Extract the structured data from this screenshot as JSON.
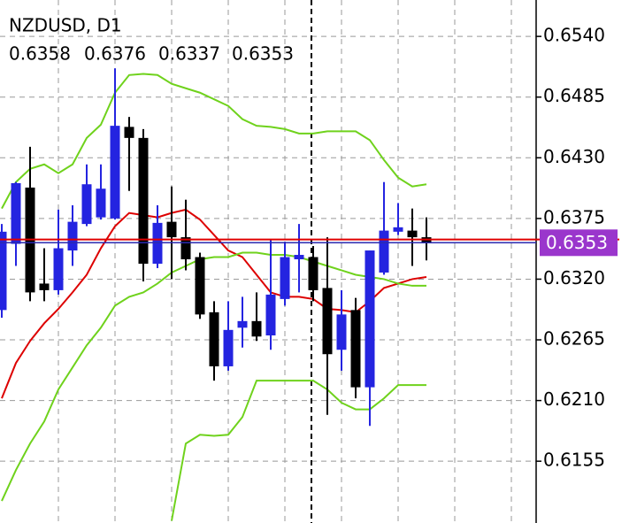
{
  "chart_data": {
    "type": "candlestick",
    "title": "NZDUSD, D1",
    "ohlc_header": [
      0.6358,
      0.6376,
      0.6337,
      0.6353
    ],
    "open": [
      0.6292,
      0.6352,
      0.6403,
      0.6316,
      0.631,
      0.6346,
      0.637,
      0.6376,
      0.6375,
      0.6458,
      0.6448,
      0.6334,
      0.6372,
      0.6358,
      0.634,
      0.629,
      0.6241,
      0.6276,
      0.6282,
      0.6269,
      0.6302,
      0.6338,
      0.634,
      0.6312,
      0.6256,
      0.6292,
      0.6222,
      0.6326,
      0.6363,
      0.6364,
      0.6358
    ],
    "high": [
      0.637,
      0.6408,
      0.644,
      0.6348,
      0.6383,
      0.6387,
      0.6424,
      0.6424,
      0.6511,
      0.6467,
      0.6456,
      0.6387,
      0.6404,
      0.6392,
      0.6344,
      0.63,
      0.63,
      0.6304,
      0.6308,
      0.6356,
      0.6354,
      0.637,
      0.635,
      0.6358,
      0.631,
      0.6303,
      0.6346,
      0.6408,
      0.6389,
      0.6384,
      0.6376
    ],
    "low": [
      0.6285,
      0.6332,
      0.63,
      0.63,
      0.6306,
      0.6332,
      0.6368,
      0.6374,
      0.6374,
      0.64,
      0.6318,
      0.633,
      0.632,
      0.6328,
      0.6284,
      0.6228,
      0.6237,
      0.6258,
      0.6264,
      0.6256,
      0.6296,
      0.6308,
      0.63,
      0.6197,
      0.6237,
      0.6212,
      0.6187,
      0.6324,
      0.636,
      0.6332,
      0.6337
    ],
    "close": [
      0.6363,
      0.6407,
      0.6308,
      0.631,
      0.6348,
      0.6372,
      0.6406,
      0.6402,
      0.6459,
      0.6448,
      0.6334,
      0.6371,
      0.6358,
      0.6338,
      0.6288,
      0.6241,
      0.6274,
      0.6282,
      0.6268,
      0.6306,
      0.634,
      0.6342,
      0.631,
      0.6252,
      0.6288,
      0.6222,
      0.6346,
      0.6364,
      0.6367,
      0.6358,
      0.6353
    ],
    "bull_color": "#2424e0",
    "bear_color": "#000000",
    "bands": [
      {
        "color": "#6fd21c",
        "values": [
          0.6384,
          0.6408,
          0.642,
          0.6424,
          0.6416,
          0.6424,
          0.6448,
          0.646,
          0.6489,
          0.6505,
          0.6506,
          0.6505,
          0.6497,
          0.6493,
          0.6489,
          0.6483,
          0.6477,
          0.6465,
          0.6459,
          0.6458,
          0.6456,
          0.6452,
          0.6452,
          0.6454,
          0.6454,
          0.6454,
          0.6446,
          0.6428,
          0.6412,
          0.6404,
          0.6406
        ]
      },
      {
        "color": "#dd0000",
        "values": [
          0.6212,
          0.6244,
          0.6264,
          0.628,
          0.6293,
          0.6308,
          0.6324,
          0.6348,
          0.6368,
          0.638,
          0.6378,
          0.6376,
          0.638,
          0.6383,
          0.6374,
          0.636,
          0.6346,
          0.634,
          0.6324,
          0.6308,
          0.6304,
          0.6304,
          0.6302,
          0.6293,
          0.6292,
          0.629,
          0.63,
          0.6312,
          0.6316,
          0.632,
          0.6322
        ]
      },
      {
        "color": "#6fd21c",
        "values": [
          0.6119,
          0.6147,
          0.6171,
          0.6191,
          0.622,
          0.624,
          0.626,
          0.6276,
          0.6296,
          0.6304,
          0.6308,
          0.6316,
          0.6326,
          0.6332,
          0.6338,
          0.634,
          0.634,
          0.6344,
          0.6344,
          0.6342,
          0.6342,
          0.634,
          0.6336,
          0.6332,
          0.6328,
          0.6324,
          0.6322,
          0.632,
          0.6316,
          0.6314,
          0.6314
        ]
      },
      {
        "color": "#6fd21c",
        "values": [
          null,
          null,
          null,
          null,
          null,
          null,
          null,
          null,
          null,
          null,
          null,
          null,
          0.6101,
          0.6171,
          0.6179,
          0.6178,
          0.6179,
          0.6195,
          0.6228,
          0.6228,
          0.6228,
          0.6228,
          0.6228,
          0.622,
          0.6208,
          0.6202,
          0.6202,
          0.6212,
          0.6224,
          0.6224,
          0.6224
        ]
      }
    ],
    "price_line": 0.6353,
    "price_line_color": "#2a2ab0",
    "price_label_color": "#9a36cc",
    "ask_line": 0.6356,
    "ask_line_color": "#e00000",
    "ylim": [
      0.6099,
      0.6573
    ],
    "yticks": [
      {
        "value": 0.654,
        "label": "0.6540"
      },
      0.6485,
      {
        "value": 0.643,
        "label": "0.6430"
      },
      0.6375,
      {
        "value": 0.632,
        "label": "0.6320"
      },
      0.6265,
      {
        "value": 0.621,
        "label": "0.6210"
      },
      0.6155
    ],
    "grid": true
  }
}
